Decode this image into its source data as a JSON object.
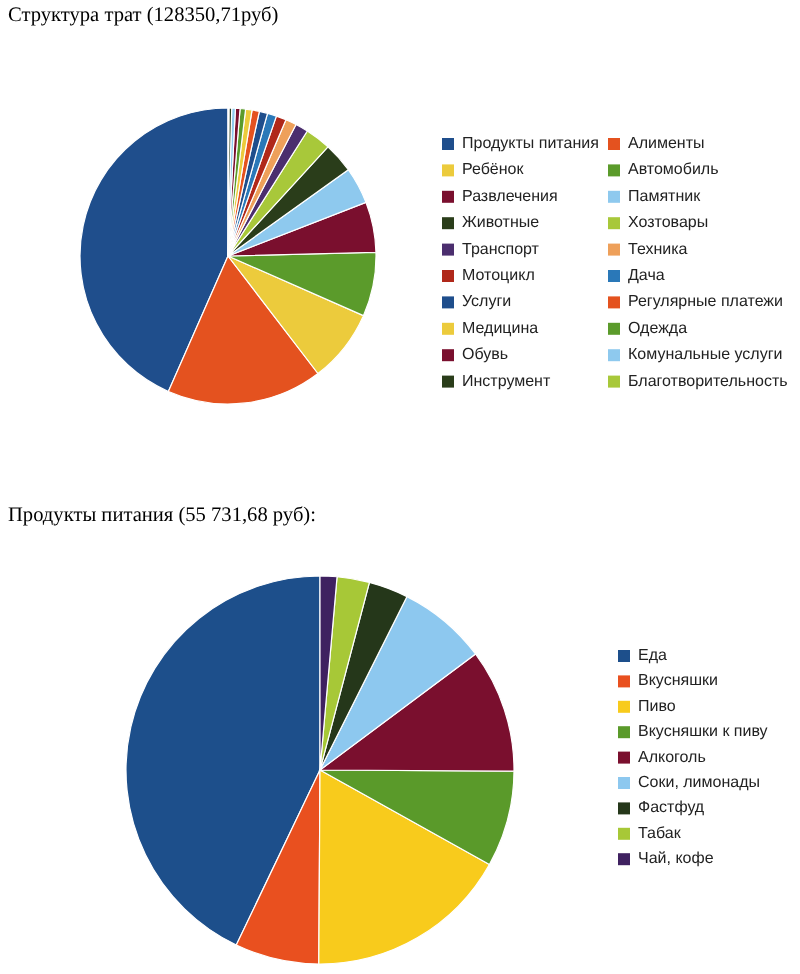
{
  "chart_data": [
    {
      "type": "pie",
      "title": "Структура трат (128350,71руб)",
      "categories": [
        "Продукты питания",
        "Алименты",
        "Ребёнок",
        "Автомобиль",
        "Развлечения",
        "Памятник",
        "Животные",
        "Хозтовары",
        "Транспорт",
        "Техника",
        "Мотоцикл",
        "Дача",
        "Услуги",
        "Регулярные платежи",
        "Медицина",
        "Одежда",
        "Обувь",
        "Комунальные услуги",
        "Инструмент",
        "Благотворительность"
      ],
      "values": [
        43.4,
        17,
        8,
        7,
        5.5,
        4,
        3.3,
        2.8,
        1.4,
        1.2,
        1.1,
        1.0,
        0.9,
        0.8,
        0.7,
        0.6,
        0.5,
        0.4,
        0.3,
        0.1
      ],
      "colors": [
        "#1f4e8c",
        "#e4521f",
        "#eccb3c",
        "#5b9b2b",
        "#7a0f2e",
        "#8ec9ee",
        "#2a3d1a",
        "#a8c83a",
        "#4b2e6e",
        "#eea05a",
        "#b0281a",
        "#2a78b8",
        "#1f4e8c",
        "#e4521f",
        "#eccb3c",
        "#5b9b2b",
        "#7a0f2e",
        "#8ec9ee",
        "#2a3d1a",
        "#a8c83a"
      ],
      "legend": "right"
    },
    {
      "type": "pie",
      "title": "Продукты питания (55 731,68 руб):",
      "categories": [
        "Еда",
        "Вкусняшки",
        "Пиво",
        "Вкусняшки к пиву",
        "Алкоголь",
        "Соки, лимонады",
        "Фастфуд",
        "Табак",
        "Чай, кофе"
      ],
      "values": [
        42.9,
        7,
        17,
        8,
        10.3,
        7.4,
        3.3,
        2.7,
        1.4
      ],
      "colors": [
        "#1d4f8b",
        "#e9501f",
        "#f8cb1c",
        "#5a9a2a",
        "#7a0f2e",
        "#8dc8ef",
        "#25371a",
        "#a7c837",
        "#3f2160"
      ],
      "legend": "right"
    }
  ]
}
